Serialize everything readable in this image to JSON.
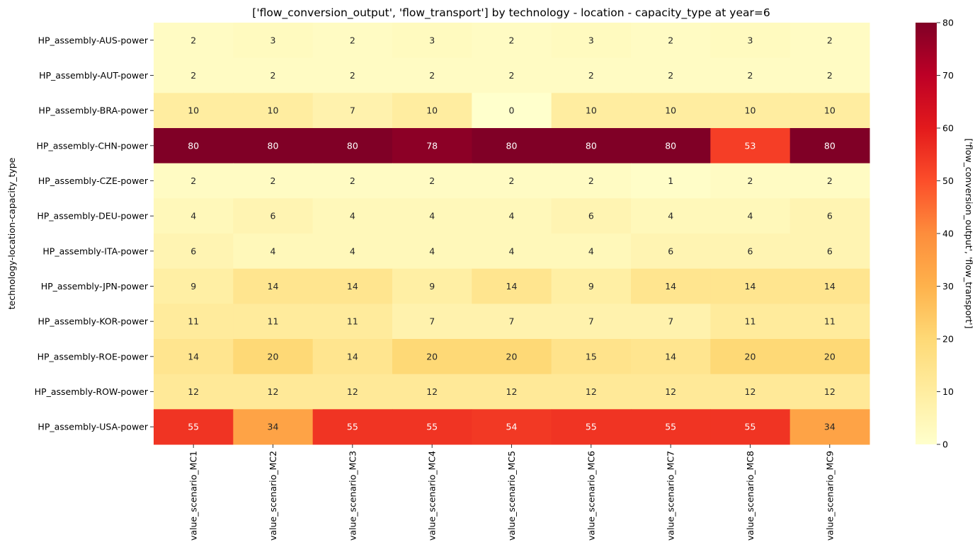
{
  "chart_data": {
    "type": "heatmap",
    "title": "['flow_conversion_output', 'flow_transport'] by technology - location - capacity_type at year=6",
    "xlabel": "",
    "ylabel": "technology-location-capacity_type",
    "colorbar_label": "['flow_conversion_output', 'flow_transport']",
    "colormap": "YlOrRd",
    "vmin": 0,
    "vmax": 80,
    "colorbar_ticks": [
      0,
      10,
      20,
      30,
      40,
      50,
      60,
      70,
      80
    ],
    "x_categories": [
      "value_scenario_MC1",
      "value_scenario_MC2",
      "value_scenario_MC3",
      "value_scenario_MC4",
      "value_scenario_MC5",
      "value_scenario_MC6",
      "value_scenario_MC7",
      "value_scenario_MC8",
      "value_scenario_MC9"
    ],
    "y_categories": [
      "HP_assembly-AUS-power",
      "HP_assembly-AUT-power",
      "HP_assembly-BRA-power",
      "HP_assembly-CHN-power",
      "HP_assembly-CZE-power",
      "HP_assembly-DEU-power",
      "HP_assembly-ITA-power",
      "HP_assembly-JPN-power",
      "HP_assembly-KOR-power",
      "HP_assembly-ROE-power",
      "HP_assembly-ROW-power",
      "HP_assembly-USA-power"
    ],
    "values": [
      [
        2,
        3,
        2,
        3,
        2,
        3,
        2,
        3,
        2
      ],
      [
        2,
        2,
        2,
        2,
        2,
        2,
        2,
        2,
        2
      ],
      [
        10,
        10,
        7,
        10,
        0,
        10,
        10,
        10,
        10
      ],
      [
        80,
        80,
        80,
        78,
        80,
        80,
        80,
        53,
        80
      ],
      [
        2,
        2,
        2,
        2,
        2,
        2,
        1,
        2,
        2
      ],
      [
        4,
        6,
        4,
        4,
        4,
        6,
        4,
        4,
        6
      ],
      [
        6,
        4,
        4,
        4,
        4,
        4,
        6,
        6,
        6
      ],
      [
        9,
        14,
        14,
        9,
        14,
        9,
        14,
        14,
        14
      ],
      [
        11,
        11,
        11,
        7,
        7,
        7,
        7,
        11,
        11
      ],
      [
        14,
        20,
        14,
        20,
        20,
        15,
        14,
        20,
        20
      ],
      [
        12,
        12,
        12,
        12,
        12,
        12,
        12,
        12,
        12
      ],
      [
        55,
        34,
        55,
        55,
        54,
        55,
        55,
        55,
        34
      ]
    ]
  }
}
